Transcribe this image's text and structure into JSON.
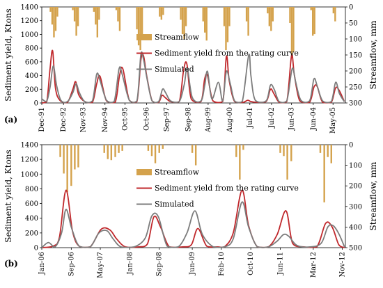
{
  "figure": {
    "colors": {
      "streamflow": "#D4A24C",
      "rating": "#C0282C",
      "simulated": "#7C7C7C",
      "axis": "#000000"
    }
  },
  "chart_data": [
    {
      "type": "line",
      "panel_label": "(a)",
      "ylabel": "Sediment yield, Ktons",
      "y2label": "Streamflow, mm",
      "ylim": [
        0,
        1400
      ],
      "yticks": [
        0,
        200,
        400,
        600,
        800,
        1000,
        1200,
        1400
      ],
      "y2lim": [
        0,
        300
      ],
      "y2ticks": [
        0,
        50,
        100,
        150,
        200,
        250,
        300
      ],
      "y2_inverted": true,
      "xlim": [
        1991.92,
        2005.9
      ],
      "x_tick_labels": [
        "Dec-91",
        "Dec-92",
        "Nov-93",
        "Nov-94",
        "Oct-95",
        "Oct-96",
        "Sep-97",
        "Sep-98",
        "Aug-99",
        "Aug-00",
        "Jul-01",
        "Jul-02",
        "Jun-03",
        "Jun-04",
        "May-05"
      ],
      "x_tick_positions": [
        1991.92,
        1992.92,
        1993.83,
        1994.83,
        1995.75,
        1996.75,
        1997.67,
        1998.67,
        1999.58,
        2000.58,
        2001.5,
        2002.5,
        2003.42,
        2004.42,
        2005.33
      ],
      "legend_position": "center",
      "series": [
        {
          "name": "Streamflow",
          "kind": "bar",
          "axis": "right",
          "t": [
            1992.32,
            1992.4,
            1992.48,
            1992.56,
            1992.64,
            1993.35,
            1993.43,
            1993.51,
            1993.59,
            1994.32,
            1994.4,
            1994.48,
            1994.56,
            1995.35,
            1995.43,
            1995.51,
            1996.3,
            1996.38,
            1996.46,
            1996.54,
            1997.35,
            1997.43,
            1997.51,
            1998.32,
            1998.4,
            1998.48,
            1998.56,
            1999.35,
            1999.43,
            1999.51,
            2000.32,
            2000.4,
            2000.48,
            2000.56,
            2001.35,
            2001.43,
            2002.32,
            2002.4,
            2002.48,
            2002.56,
            2003.35,
            2003.43,
            2003.51,
            2004.32,
            2004.4,
            2004.48,
            2005.35,
            2005.43
          ],
          "values": [
            15,
            55,
            95,
            75,
            30,
            10,
            45,
            90,
            60,
            15,
            55,
            95,
            40,
            10,
            45,
            75,
            70,
            120,
            135,
            90,
            30,
            40,
            25,
            40,
            85,
            100,
            60,
            45,
            80,
            105,
            60,
            135,
            110,
            60,
            45,
            90,
            20,
            60,
            75,
            45,
            50,
            160,
            140,
            10,
            90,
            85,
            20,
            45
          ]
        },
        {
          "name": "Sediment yield from the rating curve",
          "kind": "line",
          "axis": "left",
          "t": [
            1991.92,
            1992.15,
            1992.3,
            1992.42,
            1992.55,
            1992.75,
            1993.1,
            1993.35,
            1993.48,
            1993.62,
            1993.9,
            1994.25,
            1994.45,
            1994.6,
            1994.9,
            1995.3,
            1995.5,
            1995.65,
            1995.95,
            1996.3,
            1996.48,
            1996.6,
            1996.75,
            1997.0,
            1997.3,
            1997.45,
            1997.6,
            1997.85,
            1998.25,
            1998.45,
            1998.6,
            1998.8,
            1999.25,
            1999.42,
            1999.55,
            1999.8,
            2000.25,
            2000.42,
            2000.55,
            2000.8,
            2001.2,
            2001.4,
            2001.55,
            2001.8,
            2002.25,
            2002.45,
            2002.6,
            2002.85,
            2003.2,
            2003.42,
            2003.55,
            2003.8,
            2004.25,
            2004.45,
            2004.6,
            2004.85,
            2005.25,
            2005.45,
            2005.62,
            2005.85
          ],
          "values": [
            0,
            20,
            500,
            760,
            220,
            40,
            10,
            200,
            310,
            120,
            20,
            10,
            280,
            390,
            30,
            10,
            400,
            500,
            40,
            20,
            620,
            690,
            400,
            30,
            10,
            110,
            80,
            20,
            20,
            480,
            570,
            60,
            20,
            350,
            400,
            30,
            20,
            680,
            330,
            20,
            10,
            40,
            20,
            10,
            20,
            200,
            140,
            10,
            20,
            690,
            410,
            30,
            10,
            230,
            240,
            10,
            10,
            220,
            180,
            20
          ]
        },
        {
          "name": "Simulated",
          "kind": "line",
          "axis": "left",
          "t": [
            1991.92,
            1992.15,
            1992.3,
            1992.45,
            1992.6,
            1992.8,
            1993.1,
            1993.35,
            1993.5,
            1993.65,
            1993.9,
            1994.25,
            1994.45,
            1994.6,
            1994.9,
            1995.25,
            1995.48,
            1995.62,
            1995.95,
            1996.3,
            1996.48,
            1996.6,
            1996.78,
            1997.0,
            1997.3,
            1997.48,
            1997.62,
            1997.85,
            1998.25,
            1998.48,
            1998.62,
            1998.85,
            1999.25,
            1999.42,
            1999.55,
            1999.75,
            2000.05,
            2000.25,
            2000.42,
            2000.6,
            2000.8,
            2001.15,
            2001.45,
            2001.55,
            2001.75,
            2002.25,
            2002.45,
            2002.62,
            2002.85,
            2003.2,
            2003.45,
            2003.6,
            2003.85,
            2004.25,
            2004.45,
            2004.6,
            2004.85,
            2005.25,
            2005.45,
            2005.62,
            2005.85
          ],
          "values": [
            60,
            30,
            230,
            540,
            260,
            40,
            20,
            150,
            280,
            150,
            20,
            30,
            420,
            330,
            40,
            20,
            500,
            420,
            40,
            30,
            700,
            640,
            330,
            30,
            20,
            200,
            150,
            30,
            20,
            270,
            500,
            80,
            30,
            250,
            460,
            60,
            300,
            30,
            460,
            280,
            30,
            20,
            700,
            400,
            40,
            30,
            260,
            200,
            20,
            30,
            500,
            320,
            40,
            30,
            350,
            250,
            30,
            20,
            300,
            140,
            20
          ]
        }
      ]
    },
    {
      "type": "line",
      "panel_label": "(b)",
      "ylabel": "Sediment yield, Ktons",
      "y2label": "Streamflow, mm",
      "ylim": [
        0,
        1400
      ],
      "yticks": [
        0,
        200,
        400,
        600,
        800,
        1000,
        1200,
        1400
      ],
      "y2lim": [
        0,
        500
      ],
      "y2ticks": [
        0,
        100,
        200,
        300,
        400,
        500
      ],
      "y2_inverted": true,
      "xlim": [
        2006.0,
        2012.9
      ],
      "x_tick_labels": [
        "Jan-06",
        "Sep-06",
        "May-07",
        "Jan-08",
        "Sep-08",
        "Jun-09",
        "Feb-10",
        "Oct-10",
        "Jun-11",
        "Mar-12",
        "Nov-12"
      ],
      "x_tick_positions": [
        2006.0,
        2006.67,
        2007.33,
        2008.0,
        2008.67,
        2009.42,
        2010.08,
        2010.75,
        2011.42,
        2012.17,
        2012.83
      ],
      "legend_position": "center",
      "series": [
        {
          "name": "Streamflow",
          "kind": "bar",
          "axis": "right",
          "t": [
            2006.42,
            2006.5,
            2006.58,
            2006.67,
            2006.75,
            2006.83,
            2007.42,
            2007.5,
            2007.58,
            2007.67,
            2007.75,
            2007.83,
            2008.42,
            2008.5,
            2008.58,
            2008.67,
            2008.75,
            2009.42,
            2009.5,
            2010.42,
            2010.5,
            2010.58,
            2011.42,
            2011.5,
            2011.58,
            2011.67,
            2012.33,
            2012.42,
            2012.5,
            2012.58
          ],
          "values": [
            60,
            140,
            230,
            200,
            120,
            110,
            40,
            70,
            75,
            60,
            40,
            30,
            30,
            55,
            90,
            40,
            20,
            40,
            100,
            60,
            170,
            25,
            40,
            55,
            170,
            80,
            40,
            280,
            60,
            90
          ]
        },
        {
          "name": "Sediment yield from the rating curve",
          "kind": "line",
          "axis": "left",
          "t": [
            2006.0,
            2006.25,
            2006.4,
            2006.55,
            2006.7,
            2006.85,
            2007.1,
            2007.35,
            2007.55,
            2007.7,
            2007.9,
            2008.2,
            2008.4,
            2008.55,
            2008.7,
            2008.9,
            2009.2,
            2009.4,
            2009.55,
            2009.75,
            2010.0,
            2010.15,
            2010.35,
            2010.55,
            2010.7,
            2010.9,
            2011.15,
            2011.35,
            2011.55,
            2011.7,
            2011.95,
            2012.25,
            2012.45,
            2012.6,
            2012.75,
            2012.88
          ],
          "values": [
            0,
            20,
            140,
            780,
            220,
            20,
            10,
            250,
            240,
            120,
            10,
            10,
            50,
            420,
            280,
            10,
            10,
            40,
            260,
            20,
            10,
            10,
            200,
            780,
            300,
            10,
            10,
            180,
            500,
            60,
            10,
            10,
            330,
            280,
            40,
            0
          ]
        },
        {
          "name": "Simulated",
          "kind": "line",
          "axis": "left",
          "t": [
            2006.0,
            2006.15,
            2006.3,
            2006.45,
            2006.55,
            2006.68,
            2006.85,
            2007.1,
            2007.3,
            2007.48,
            2007.62,
            2007.8,
            2008.1,
            2008.35,
            2008.5,
            2008.65,
            2008.85,
            2009.1,
            2009.3,
            2009.48,
            2009.65,
            2009.9,
            2010.15,
            2010.35,
            2010.55,
            2010.7,
            2010.9,
            2011.15,
            2011.35,
            2011.5,
            2011.62,
            2011.8,
            2012.1,
            2012.35,
            2012.5,
            2012.62,
            2012.75,
            2012.88
          ],
          "values": [
            0,
            70,
            10,
            200,
            520,
            260,
            20,
            10,
            200,
            230,
            120,
            10,
            10,
            130,
            430,
            420,
            20,
            10,
            200,
            500,
            180,
            10,
            10,
            120,
            620,
            280,
            10,
            10,
            90,
            180,
            150,
            30,
            10,
            60,
            280,
            300,
            190,
            10
          ]
        }
      ]
    }
  ]
}
